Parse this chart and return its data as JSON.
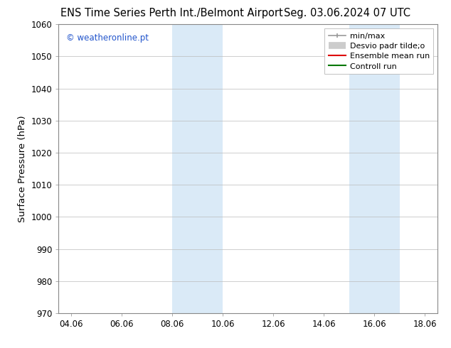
{
  "title_left": "ENS Time Series Perth Int./Belmont Airport",
  "title_right": "Seg. 03.06.2024 07 UTC",
  "ylabel": "Surface Pressure (hPa)",
  "ylim": [
    970,
    1060
  ],
  "yticks": [
    970,
    980,
    990,
    1000,
    1010,
    1020,
    1030,
    1040,
    1050,
    1060
  ],
  "xlim_start": 3.5,
  "xlim_end": 18.5,
  "xtick_labels": [
    "04.06",
    "06.06",
    "08.06",
    "10.06",
    "12.06",
    "14.06",
    "16.06",
    "18.06"
  ],
  "xtick_positions": [
    4,
    6,
    8,
    10,
    12,
    14,
    16,
    18
  ],
  "shaded_regions": [
    {
      "xmin": 8.0,
      "xmax": 10.0,
      "color": "#daeaf7"
    },
    {
      "xmin": 15.0,
      "xmax": 17.0,
      "color": "#daeaf7"
    }
  ],
  "watermark": "© weatheronline.pt",
  "watermark_color": "#2255cc",
  "background_color": "#ffffff",
  "title_fontsize": 10.5,
  "tick_fontsize": 8.5,
  "ylabel_fontsize": 9.5,
  "legend_fontsize": 8,
  "watermark_fontsize": 8.5
}
